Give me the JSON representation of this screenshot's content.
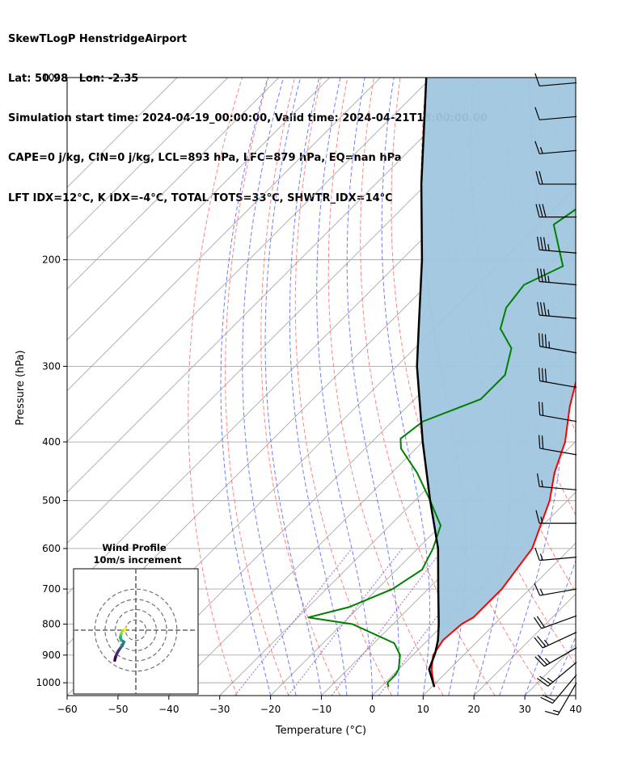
{
  "header": {
    "lines": [
      "SkewTLogP HenstridgeAirport",
      "Lat: 50.98   Lon: -2.35",
      "Simulation start time: 2024-04-19_00:00:00, Valid time: 2024-04-21T18:00:00.00",
      "CAPE=0 j/kg, CIN=0 j/kg, LCL=893 hPa, LFC=879 hPa, EQ=nan hPa",
      "LFT IDX=12°C, K IDX=-4°C, TOTAL TOTS=33°C, SHWTR_IDX=14°C"
    ]
  },
  "chart_data": {
    "type": "skewt-logp",
    "xlabel": "Temperature (°C)",
    "ylabel": "Pressure (hPa)",
    "xlim": [
      -60,
      40
    ],
    "ylim": [
      1050,
      100
    ],
    "x_ticks": [
      "−60",
      "−50",
      "−40",
      "−30",
      "−20",
      "−10",
      "0",
      "10",
      "20",
      "30",
      "40"
    ],
    "y_ticks": [
      "1000",
      "900",
      "800",
      "700",
      "600",
      "500",
      "400",
      "300",
      "200",
      "100"
    ],
    "colors": {
      "temperature": "#ff0000",
      "dewpoint": "#008000",
      "parcel": "#000000",
      "shading": "#a1c6e0",
      "dry_adiabats": "#ff5a5a",
      "moist_adiabats": "#4a5cff",
      "isotherms": "#aaaaaa",
      "mixing_ratio": "#8c3fc8"
    },
    "temperature_profile": [
      [
        1016,
        10.5
      ],
      [
        1000,
        9.5
      ],
      [
        950,
        6.5
      ],
      [
        900,
        4.0
      ],
      [
        850,
        3.0
      ],
      [
        800,
        3.5
      ],
      [
        780,
        4.5
      ],
      [
        700,
        4.5
      ],
      [
        600,
        2.5
      ],
      [
        500,
        -3.5
      ],
      [
        450,
        -8.0
      ],
      [
        400,
        -12.0
      ],
      [
        350,
        -18.0
      ],
      [
        300,
        -24.0
      ],
      [
        270,
        -27.5
      ],
      [
        250,
        -28.5
      ],
      [
        220,
        -27.0
      ],
      [
        200,
        -25.0
      ],
      [
        180,
        -22.0
      ],
      [
        160,
        -18.0
      ],
      [
        140,
        -15.5
      ],
      [
        120,
        -12.0
      ],
      [
        110,
        -9.0
      ],
      [
        100,
        -6.0
      ]
    ],
    "dewpoint_profile": [
      [
        1016,
        1.5
      ],
      [
        1000,
        0.5
      ],
      [
        970,
        0.5
      ],
      [
        950,
        0.0
      ],
      [
        900,
        -2.5
      ],
      [
        860,
        -6.0
      ],
      [
        800,
        -18.0
      ],
      [
        780,
        -28.0
      ],
      [
        750,
        -22.0
      ],
      [
        700,
        -17.0
      ],
      [
        650,
        -15.0
      ],
      [
        600,
        -17.0
      ],
      [
        550,
        -20.0
      ],
      [
        500,
        -27.0
      ],
      [
        450,
        -35.0
      ],
      [
        410,
        -43.0
      ],
      [
        395,
        -45.0
      ],
      [
        370,
        -44.0
      ],
      [
        340,
        -37.0
      ],
      [
        310,
        -37.0
      ],
      [
        280,
        -41.0
      ],
      [
        260,
        -47.0
      ],
      [
        240,
        -50.0
      ],
      [
        220,
        -51.0
      ],
      [
        205,
        -47.0
      ],
      [
        175,
        -57.0
      ],
      [
        140,
        -52.0
      ],
      [
        120,
        -49.0
      ],
      [
        100,
        -45.0
      ]
    ],
    "parcel_profile": [
      [
        1016,
        10.5
      ],
      [
        950,
        6.0
      ],
      [
        893,
        4.0
      ],
      [
        850,
        2.0
      ],
      [
        800,
        -1.0
      ],
      [
        700,
        -8.0
      ],
      [
        600,
        -16.0
      ],
      [
        500,
        -27.0
      ],
      [
        400,
        -40.0
      ],
      [
        300,
        -56.0
      ],
      [
        250,
        -65.0
      ],
      [
        200,
        -76.0
      ],
      [
        150,
        -91.0
      ],
      [
        120,
        -102.0
      ],
      [
        100,
        -111.0
      ]
    ],
    "wind_barbs": [
      {
        "p": 1000,
        "dir": 210,
        "speed_kt": 15
      },
      {
        "p": 970,
        "dir": 220,
        "speed_kt": 20
      },
      {
        "p": 925,
        "dir": 230,
        "speed_kt": 25
      },
      {
        "p": 875,
        "dir": 240,
        "speed_kt": 25
      },
      {
        "p": 825,
        "dir": 245,
        "speed_kt": 25
      },
      {
        "p": 775,
        "dir": 250,
        "speed_kt": 20
      },
      {
        "p": 700,
        "dir": 260,
        "speed_kt": 15
      },
      {
        "p": 620,
        "dir": 265,
        "speed_kt": 15
      },
      {
        "p": 545,
        "dir": 270,
        "speed_kt": 15
      },
      {
        "p": 480,
        "dir": 275,
        "speed_kt": 15
      },
      {
        "p": 420,
        "dir": 280,
        "speed_kt": 20
      },
      {
        "p": 370,
        "dir": 280,
        "speed_kt": 20
      },
      {
        "p": 325,
        "dir": 280,
        "speed_kt": 30
      },
      {
        "p": 285,
        "dir": 280,
        "speed_kt": 35
      },
      {
        "p": 250,
        "dir": 275,
        "speed_kt": 35
      },
      {
        "p": 220,
        "dir": 275,
        "speed_kt": 35
      },
      {
        "p": 195,
        "dir": 275,
        "speed_kt": 35
      },
      {
        "p": 170,
        "dir": 270,
        "speed_kt": 30
      },
      {
        "p": 150,
        "dir": 270,
        "speed_kt": 20
      },
      {
        "p": 132,
        "dir": 265,
        "speed_kt": 15
      },
      {
        "p": 116,
        "dir": 265,
        "speed_kt": 10
      },
      {
        "p": 102,
        "dir": 265,
        "speed_kt": 10
      }
    ],
    "hodograph": {
      "title_line1": "Wind Profile",
      "title_line2": "10m/s increment",
      "rings_ms": [
        10,
        20,
        30,
        40
      ],
      "colormap": "viridis",
      "points_uv": [
        [
          -20.5,
          -29.5
        ],
        [
          -20.0,
          -27.0
        ],
        [
          -19.0,
          -24.0
        ],
        [
          -17.5,
          -21.0
        ],
        [
          -15.5,
          -18.0
        ],
        [
          -14.0,
          -16.0
        ],
        [
          -12.5,
          -13.5
        ],
        [
          -11.5,
          -11.5
        ],
        [
          -14.5,
          -9.5
        ],
        [
          -15.0,
          -7.0
        ],
        [
          -14.5,
          -4.5
        ],
        [
          -14.0,
          -2.5
        ],
        [
          -13.0,
          -1.0
        ],
        [
          -11.0,
          0.5
        ],
        [
          -10.0,
          1.5
        ]
      ]
    }
  }
}
